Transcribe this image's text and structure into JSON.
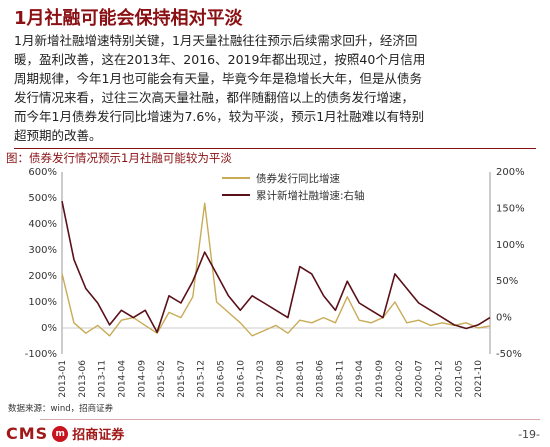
{
  "header": {
    "title": "1月社融可能会保持相对平淡"
  },
  "body": {
    "lines": [
      "1月新增社融增速特别关键，1月天量社融往往预示后续需求回升，经济回",
      "暖，盈利改善，这在2013年、2016、2019年都出现过，按照40个月信用",
      "周期规律，今年1月也可能会有天量，毕竟今年是稳增长大年，但是从债务",
      "发行情况来看，过往三次高天量社融，都伴随翻倍以上的债务发行增速，",
      "而今年1月债券发行同比增速为7.6%，较为平淡，预示1月社融难以有特别",
      "超预期的改善。"
    ]
  },
  "figure": {
    "caption": "图：债券发行情况预示1月社融可能较为平淡"
  },
  "chart_data": {
    "type": "line",
    "title": "",
    "x": [
      "2013-01",
      "2013-04",
      "2013-07",
      "2013-10",
      "2014-01",
      "2014-04",
      "2014-07",
      "2014-10",
      "2015-01",
      "2015-04",
      "2015-07",
      "2015-10",
      "2016-01",
      "2016-04",
      "2016-07",
      "2016-10",
      "2017-01",
      "2017-04",
      "2017-07",
      "2017-10",
      "2018-01",
      "2018-04",
      "2018-07",
      "2018-10",
      "2019-01",
      "2019-04",
      "2019-07",
      "2019-10",
      "2020-01",
      "2020-04",
      "2020-07",
      "2020-10",
      "2021-01",
      "2021-04",
      "2021-07",
      "2021-10",
      "2022-01"
    ],
    "xticks": [
      "2013-01",
      "2013-06",
      "2013-11",
      "2014-04",
      "2014-09",
      "2015-02",
      "2015-07",
      "2015-12",
      "2016-05",
      "2016-10",
      "2017-03",
      "2017-08",
      "2018-01",
      "2018-06",
      "2018-11",
      "2019-04",
      "2019-09",
      "2020-02",
      "2020-07",
      "2020-12",
      "2021-05",
      "2021-10"
    ],
    "y_left": {
      "ticks": [
        "-100%",
        "0%",
        "100%",
        "200%",
        "300%",
        "400%",
        "500%",
        "600%"
      ],
      "lim": [
        -100,
        600
      ]
    },
    "y_right": {
      "ticks": [
        "-50%",
        "0%",
        "50%",
        "100%",
        "150%",
        "200%"
      ],
      "lim": [
        -50,
        200
      ]
    },
    "series": [
      {
        "name": "债券发行同比增速",
        "axis": "left",
        "color": "#c9ab57",
        "values": [
          210,
          20,
          -20,
          10,
          -30,
          30,
          40,
          10,
          -20,
          60,
          40,
          120,
          480,
          100,
          60,
          20,
          -30,
          -10,
          10,
          -20,
          30,
          20,
          40,
          20,
          120,
          30,
          20,
          40,
          100,
          20,
          30,
          10,
          20,
          10,
          20,
          0,
          8
        ]
      },
      {
        "name": "累计新增社融增速:右轴",
        "axis": "right",
        "color": "#5a1018",
        "values": [
          160,
          80,
          40,
          20,
          -10,
          10,
          0,
          10,
          -20,
          30,
          20,
          50,
          90,
          60,
          30,
          10,
          30,
          20,
          10,
          0,
          70,
          60,
          30,
          10,
          50,
          20,
          10,
          0,
          60,
          40,
          20,
          10,
          0,
          -10,
          -15,
          -10,
          0
        ]
      }
    ],
    "grid": false,
    "legend": "top-center"
  },
  "footer": {
    "source": "数据来源：wind，招商证券",
    "logo_latin": "CMS",
    "logo_badge": "m",
    "logo_cn": "招商证券",
    "page": "-19-"
  }
}
